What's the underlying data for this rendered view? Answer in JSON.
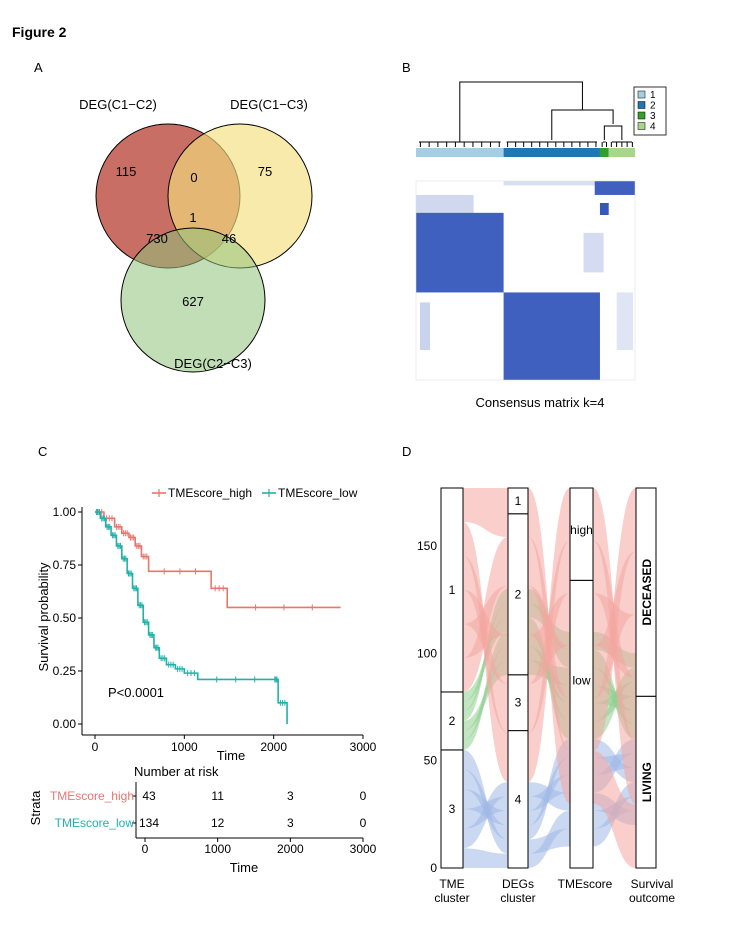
{
  "figure_title": "Figure 2",
  "panels": {
    "A": {
      "letter": "A"
    },
    "B": {
      "letter": "B"
    },
    "C": {
      "letter": "C"
    },
    "D": {
      "letter": "D"
    }
  },
  "chart_data": [
    {
      "panel": "A",
      "type": "venn",
      "sets": [
        {
          "name": "DEG(C1−C2)",
          "color": "#c0554a"
        },
        {
          "name": "DEG(C1−C3)",
          "color": "#f5df7c"
        },
        {
          "name": "DEG(C2−C3)",
          "color": "#8fc37b"
        }
      ],
      "regions": [
        {
          "sets": [
            "C1-C2"
          ],
          "value": "115"
        },
        {
          "sets": [
            "C1-C3"
          ],
          "value": "75"
        },
        {
          "sets": [
            "C2-C3"
          ],
          "value": "627"
        },
        {
          "sets": [
            "C1-C2",
            "C1-C3"
          ],
          "value": "0"
        },
        {
          "sets": [
            "C1-C2",
            "C2-C3"
          ],
          "value": "730"
        },
        {
          "sets": [
            "C1-C3",
            "C2-C3"
          ],
          "value": "46"
        },
        {
          "sets": [
            "C1-C2",
            "C1-C3",
            "C2-C3"
          ],
          "value": "1"
        }
      ]
    },
    {
      "panel": "B",
      "type": "heatmap",
      "title": "Consensus matrix k=4",
      "legend": {
        "placement": "top-right",
        "entries": [
          "1",
          "2",
          "3",
          "4"
        ]
      },
      "cluster_colors": [
        "#a6cee3",
        "#1f78b4",
        "#33a02c",
        "#a8d68a"
      ],
      "cluster_order": [
        1,
        2,
        3,
        4
      ],
      "cluster_sizes": [
        80,
        88,
        8,
        24
      ],
      "cell_color": "#2b4fb8"
    },
    {
      "panel": "C",
      "type": "line",
      "title": "",
      "xlabel": "Time",
      "ylabel": "Survival probability",
      "xlim": [
        0,
        3000
      ],
      "ylim": [
        0,
        1
      ],
      "x_ticks": [
        "0",
        "1000",
        "2000",
        "3000"
      ],
      "y_ticks": [
        "0.00",
        "0.25",
        "0.50",
        "0.75",
        "1.00"
      ],
      "annotation": "P<0.0001",
      "legend": {
        "placement": "top",
        "entries": [
          "TMEscore_high",
          "TMEscore_low"
        ]
      },
      "series": [
        {
          "name": "TMEscore_high",
          "color": "#e8766f",
          "x": [
            0,
            100,
            220,
            300,
            380,
            450,
            520,
            600,
            1300,
            1480,
            2750
          ],
          "y": [
            1.0,
            0.97,
            0.93,
            0.9,
            0.88,
            0.84,
            0.79,
            0.72,
            0.64,
            0.55,
            0.55
          ]
        },
        {
          "name": "TMEscore_low",
          "color": "#20b2aa",
          "x": [
            0,
            60,
            120,
            180,
            240,
            300,
            360,
            420,
            480,
            540,
            600,
            660,
            720,
            800,
            900,
            1000,
            1150,
            2000,
            2050,
            2150
          ],
          "y": [
            1.0,
            0.97,
            0.93,
            0.89,
            0.84,
            0.78,
            0.71,
            0.64,
            0.56,
            0.48,
            0.42,
            0.36,
            0.31,
            0.28,
            0.26,
            0.24,
            0.21,
            0.21,
            0.1,
            0.0
          ]
        }
      ],
      "risk_table": {
        "title": "Number at risk",
        "strata_label": "Strata",
        "xlabel": "Time",
        "x_ticks": [
          "0",
          "1000",
          "2000",
          "3000"
        ],
        "rows": [
          {
            "name": "TMEscore_high",
            "color": "#e8766f",
            "values": [
              "43",
              "11",
              "3",
              "0"
            ]
          },
          {
            "name": "TMEscore_low",
            "color": "#20b2aa",
            "values": [
              "134",
              "12",
              "3",
              "0"
            ]
          }
        ]
      }
    },
    {
      "panel": "D",
      "type": "alluvial",
      "ylim": [
        0,
        177
      ],
      "y_ticks": [
        "0",
        "50",
        "100",
        "150"
      ],
      "axes": [
        {
          "label": "TME\ncluster",
          "strata": [
            {
              "name": "1",
              "value": 95,
              "color": "#f4a6a0"
            },
            {
              "name": "2",
              "value": 27,
              "color": "#8fcf8f"
            },
            {
              "name": "3",
              "value": 55,
              "color": "#9fb8e6"
            }
          ]
        },
        {
          "label": "DEGs\ncluster",
          "strata": [
            {
              "name": "1",
              "value": 12
            },
            {
              "name": "2",
              "value": 75
            },
            {
              "name": "3",
              "value": 26
            },
            {
              "name": "4",
              "value": 64
            }
          ]
        },
        {
          "label": "TMEscore",
          "strata": [
            {
              "name": "high",
              "value": 43
            },
            {
              "name": "low",
              "value": 134
            }
          ]
        },
        {
          "label": "Survival\noutcome",
          "strata": [
            {
              "name": "DECEASED",
              "value": 97
            },
            {
              "name": "LIVING",
              "value": 80
            }
          ]
        }
      ]
    }
  ]
}
